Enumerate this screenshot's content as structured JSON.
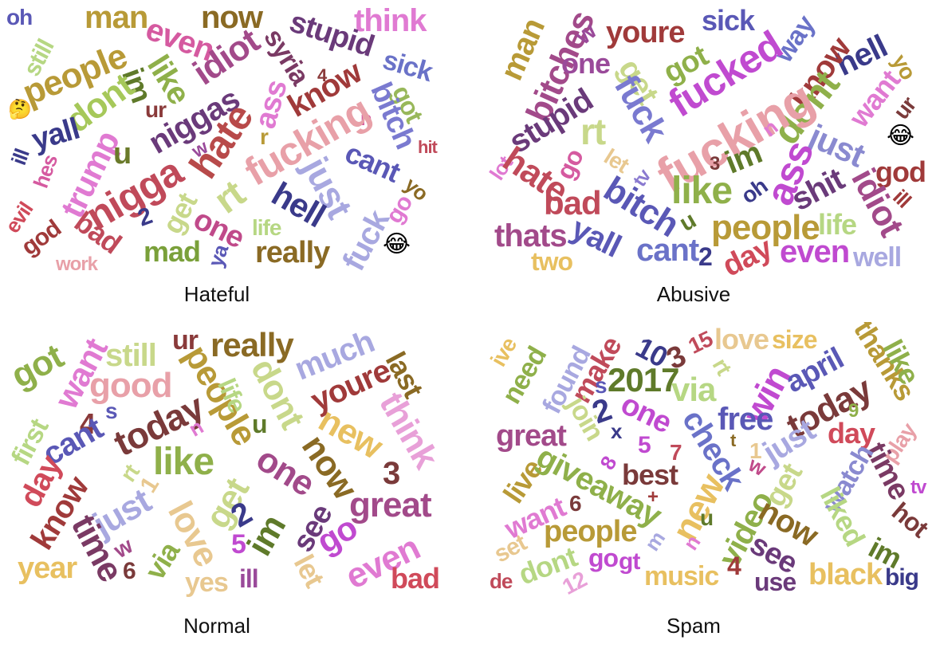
{
  "panels": [
    {
      "caption": "Hateful",
      "words": [
        {
          "text": "oh",
          "color": "#5a58b6"
        },
        {
          "text": "man",
          "color": "#b89a37"
        },
        {
          "text": "now",
          "color": "#8a6a24"
        },
        {
          "text": "think",
          "color": "#e07ad2"
        },
        {
          "text": "still",
          "color": "#b6d783"
        },
        {
          "text": "people",
          "color": "#b89a37"
        },
        {
          "text": "even",
          "color": "#d55aa0"
        },
        {
          "text": "stupid",
          "color": "#6a3a7a"
        },
        {
          "text": "sick",
          "color": "#6a72c8"
        },
        {
          "text": "idiot",
          "color": "#a24a8a"
        },
        {
          "text": "syria",
          "color": "#7a3a64"
        },
        {
          "text": "im",
          "color": "#5f7a2a"
        },
        {
          "text": "like",
          "color": "#8fb04a"
        },
        {
          "text": "ass",
          "color": "#e07ad2"
        },
        {
          "text": "know",
          "color": "#a03a3a"
        },
        {
          "text": "got",
          "color": "#98b85a"
        },
        {
          "text": "dont",
          "color": "#a6c85a"
        },
        {
          "text": "ur",
          "color": "#8a3a3a"
        },
        {
          "text": "niggas",
          "color": "#6a3a7a"
        },
        {
          "text": "bitch",
          "color": "#7a7ad0"
        },
        {
          "text": "yall",
          "color": "#3a3a8a"
        },
        {
          "text": "r",
          "color": "#b89a37"
        },
        {
          "text": "n",
          "color": "#d55aa0"
        },
        {
          "text": "hit",
          "color": "#c04a5a"
        },
        {
          "text": "trump",
          "color": "#e07ad2"
        },
        {
          "text": "u",
          "color": "#6a7a2a"
        },
        {
          "text": "w",
          "color": "#9a4a9a"
        },
        {
          "text": "hate",
          "color": "#b84a4a"
        },
        {
          "text": "fucking",
          "color": "#e8a0a8"
        },
        {
          "text": "cant",
          "color": "#5a58b6"
        },
        {
          "text": "ill",
          "color": "#3a3a8a"
        },
        {
          "text": "evil",
          "color": "#d04a5a"
        },
        {
          "text": "hes",
          "color": "#d55aa0"
        },
        {
          "text": "nigga",
          "color": "#c04a5a"
        },
        {
          "text": "rt",
          "color": "#c8d88a"
        },
        {
          "text": "just",
          "color": "#a8a8e0"
        },
        {
          "text": "yo",
          "color": "#8a6a24"
        },
        {
          "text": "get",
          "color": "#c8d88a"
        },
        {
          "text": "2",
          "color": "#3a3a8a"
        },
        {
          "text": "hell",
          "color": "#3a3a8a"
        },
        {
          "text": "go",
          "color": "#e07ad2"
        },
        {
          "text": "god",
          "color": "#a03a3a"
        },
        {
          "text": "bad",
          "color": "#c04a5a"
        },
        {
          "text": "one",
          "color": "#c04a8a"
        },
        {
          "text": "life",
          "color": "#b6d783"
        },
        {
          "text": "mad",
          "color": "#7aa03a"
        },
        {
          "text": "ya",
          "color": "#5a58b6"
        },
        {
          "text": "really",
          "color": "#8a6a24"
        },
        {
          "text": "fuck",
          "color": "#a8a8e0"
        },
        {
          "text": "work",
          "color": "#e8a0a8"
        },
        {
          "text": "4",
          "color": "#8a3a3a"
        }
      ]
    },
    {
      "caption": "Abusive",
      "words": [
        {
          "text": "man",
          "color": "#b89a37"
        },
        {
          "text": "bitches",
          "color": "#a24a8a"
        },
        {
          "text": "w",
          "color": "#9a4a9a"
        },
        {
          "text": "youre",
          "color": "#a03a3a"
        },
        {
          "text": "sick",
          "color": "#5a58b6"
        },
        {
          "text": "way",
          "color": "#6a72c8"
        },
        {
          "text": "one",
          "color": "#9a4a9a"
        },
        {
          "text": "get",
          "color": "#c8d88a"
        },
        {
          "text": "got",
          "color": "#8fb04a"
        },
        {
          "text": "hell",
          "color": "#3a3a8a"
        },
        {
          "text": "yo",
          "color": "#b89a37"
        },
        {
          "text": "know",
          "color": "#a03a3a"
        },
        {
          "text": "fucked",
          "color": "#c04ad0"
        },
        {
          "text": "stupid",
          "color": "#6a3a7a"
        },
        {
          "text": "fuck",
          "color": "#7a7ad0"
        },
        {
          "text": "rt",
          "color": "#c8d88a"
        },
        {
          "text": "dont",
          "color": "#8fb04a"
        },
        {
          "text": "want",
          "color": "#e07ad2"
        },
        {
          "text": "ur",
          "color": "#7a3a3a"
        },
        {
          "text": "fucking",
          "color": "#e8a0a8"
        },
        {
          "text": "lot",
          "color": "#e07ad2"
        },
        {
          "text": "hate",
          "color": "#c04a5a"
        },
        {
          "text": "go",
          "color": "#d55aa0"
        },
        {
          "text": "let",
          "color": "#e8c890"
        },
        {
          "text": "tv",
          "color": "#8a7ad0"
        },
        {
          "text": "n",
          "color": "#e07ad2"
        },
        {
          "text": "just",
          "color": "#8a8ad0"
        },
        {
          "text": "ass",
          "color": "#c04ad0"
        },
        {
          "text": "god",
          "color": "#a03a3a"
        },
        {
          "text": "im",
          "color": "#5f7a2a"
        },
        {
          "text": "3",
          "color": "#7a3a3a"
        },
        {
          "text": "idiot",
          "color": "#a24a8a"
        },
        {
          "text": "ill",
          "color": "#a03a3a"
        },
        {
          "text": "bad",
          "color": "#c04a5a"
        },
        {
          "text": "bitch",
          "color": "#5a58b6"
        },
        {
          "text": "like",
          "color": "#8fb04a"
        },
        {
          "text": "oh",
          "color": "#3a3a8a"
        },
        {
          "text": "shit",
          "color": "#6a3a7a"
        },
        {
          "text": "u",
          "color": "#5f7a2a"
        },
        {
          "text": "thats",
          "color": "#a24a8a"
        },
        {
          "text": "yall",
          "color": "#5a58b6"
        },
        {
          "text": "people",
          "color": "#b89a37"
        },
        {
          "text": "life",
          "color": "#b6d783"
        },
        {
          "text": "two",
          "color": "#e8c060"
        },
        {
          "text": "cant",
          "color": "#6a72c8"
        },
        {
          "text": "2",
          "color": "#3a3a8a"
        },
        {
          "text": "day",
          "color": "#d04a5a"
        },
        {
          "text": "even",
          "color": "#c04ad0"
        },
        {
          "text": "well",
          "color": "#a8a8e0"
        }
      ]
    },
    {
      "caption": "Normal",
      "words": [
        {
          "text": "got",
          "color": "#8fb04a"
        },
        {
          "text": "want",
          "color": "#e07ad2"
        },
        {
          "text": "still",
          "color": "#c8d88a"
        },
        {
          "text": "ur",
          "color": "#8a3a3a"
        },
        {
          "text": "really",
          "color": "#8a6a24"
        },
        {
          "text": "much",
          "color": "#a8a8e0"
        },
        {
          "text": "last",
          "color": "#8a6a24"
        },
        {
          "text": "good",
          "color": "#e8a0a8"
        },
        {
          "text": "people",
          "color": "#b89a37"
        },
        {
          "text": "life",
          "color": "#b6d783"
        },
        {
          "text": "dont",
          "color": "#c8d88a"
        },
        {
          "text": "youre",
          "color": "#a03a3a"
        },
        {
          "text": "first",
          "color": "#b6d783"
        },
        {
          "text": "4",
          "color": "#8a3a3a"
        },
        {
          "text": "s",
          "color": "#5a58b6"
        },
        {
          "text": "today",
          "color": "#7a3a3a"
        },
        {
          "text": "u",
          "color": "#5f7a2a"
        },
        {
          "text": "new",
          "color": "#e8c060"
        },
        {
          "text": "think",
          "color": "#e8a0d8"
        },
        {
          "text": "cant",
          "color": "#5a58b6"
        },
        {
          "text": "n",
          "color": "#e07ad2"
        },
        {
          "text": "day",
          "color": "#d04a5a"
        },
        {
          "text": "like",
          "color": "#8fb04a"
        },
        {
          "text": "now",
          "color": "#8a6a24"
        },
        {
          "text": "one",
          "color": "#a24a8a"
        },
        {
          "text": "3",
          "color": "#7a3a3a"
        },
        {
          "text": "rt",
          "color": "#c8d88a"
        },
        {
          "text": "1",
          "color": "#e8c890"
        },
        {
          "text": "get",
          "color": "#c8d88a"
        },
        {
          "text": "great",
          "color": "#a24a8a"
        },
        {
          "text": "know",
          "color": "#a03a3a"
        },
        {
          "text": "just",
          "color": "#a8a8e0"
        },
        {
          "text": "love",
          "color": "#e8c890"
        },
        {
          "text": "2",
          "color": "#3a3a8a"
        },
        {
          "text": "im",
          "color": "#5f7a2a"
        },
        {
          "text": "see",
          "color": "#6a3a7a"
        },
        {
          "text": "go",
          "color": "#c04ad0"
        },
        {
          "text": "time",
          "color": "#7a3a64"
        },
        {
          "text": "w",
          "color": "#a24a8a"
        },
        {
          "text": "via",
          "color": "#8fb04a"
        },
        {
          "text": "5",
          "color": "#c04ad0"
        },
        {
          "text": "let",
          "color": "#e8c890"
        },
        {
          "text": "even",
          "color": "#e07ad2"
        },
        {
          "text": "year",
          "color": "#e8c060"
        },
        {
          "text": "6",
          "color": "#7a3a3a"
        },
        {
          "text": "yes",
          "color": "#e8c890"
        },
        {
          "text": "ill",
          "color": "#9a4a9a"
        },
        {
          "text": "bad",
          "color": "#d04a5a"
        }
      ]
    },
    {
      "caption": "Spam",
      "words": [
        {
          "text": "ive",
          "color": "#e8c060"
        },
        {
          "text": "need",
          "color": "#8fb04a"
        },
        {
          "text": "found",
          "color": "#a8a8e0"
        },
        {
          "text": "make",
          "color": "#c04a5a"
        },
        {
          "text": "10",
          "color": "#3a3a8a"
        },
        {
          "text": "3",
          "color": "#7a3a3a"
        },
        {
          "text": "15",
          "color": "#c04a5a"
        },
        {
          "text": "love",
          "color": "#e8c890"
        },
        {
          "text": "size",
          "color": "#e8c060"
        },
        {
          "text": "thanks",
          "color": "#b89a37"
        },
        {
          "text": "like",
          "color": "#8fb04a"
        },
        {
          "text": "2017",
          "color": "#5f7a2a"
        },
        {
          "text": "via",
          "color": "#b6d783"
        },
        {
          "text": "rt",
          "color": "#c8d88a"
        },
        {
          "text": "win",
          "color": "#c04ad0"
        },
        {
          "text": "april",
          "color": "#5a58b6"
        },
        {
          "text": "s",
          "color": "#5a58b6"
        },
        {
          "text": "join",
          "color": "#c8d88a"
        },
        {
          "text": "2",
          "color": "#3a3a8a"
        },
        {
          "text": "x",
          "color": "#3a3a8a"
        },
        {
          "text": "one",
          "color": "#c04ad0"
        },
        {
          "text": "free",
          "color": "#5a58b6"
        },
        {
          "text": "today",
          "color": "#7a3a3a"
        },
        {
          "text": "9",
          "color": "#8fb04a"
        },
        {
          "text": "great",
          "color": "#a24a8a"
        },
        {
          "text": "5",
          "color": "#c04ad0"
        },
        {
          "text": "check",
          "color": "#6a72c8"
        },
        {
          "text": "just",
          "color": "#a8a8e0"
        },
        {
          "text": "day",
          "color": "#d04a5a"
        },
        {
          "text": "play",
          "color": "#e8a0a8"
        },
        {
          "text": "8",
          "color": "#c04ad0"
        },
        {
          "text": "7",
          "color": "#c04a5a"
        },
        {
          "text": "t",
          "color": "#8a6a24"
        },
        {
          "text": "1",
          "color": "#e8c890"
        },
        {
          "text": "time",
          "color": "#7a3a64"
        },
        {
          "text": "live",
          "color": "#b89a37"
        },
        {
          "text": "giveaway",
          "color": "#8fb04a"
        },
        {
          "text": "best",
          "color": "#7a3a3a"
        },
        {
          "text": "w",
          "color": "#c04a8a"
        },
        {
          "text": "get",
          "color": "#c8d88a"
        },
        {
          "text": "watch",
          "color": "#8a8ad0"
        },
        {
          "text": "tv",
          "color": "#c04ad0"
        },
        {
          "text": "want",
          "color": "#e07ad2"
        },
        {
          "text": "+",
          "color": "#a03a3a"
        },
        {
          "text": "new",
          "color": "#e8c060"
        },
        {
          "text": "liked",
          "color": "#b6d783"
        },
        {
          "text": "6",
          "color": "#7a3a3a"
        },
        {
          "text": "video",
          "color": "#8fb04a"
        },
        {
          "text": "hot",
          "color": "#7a3a3a"
        },
        {
          "text": "people",
          "color": "#b89a37"
        },
        {
          "text": "u",
          "color": "#5f7a2a"
        },
        {
          "text": "now",
          "color": "#8a6a24"
        },
        {
          "text": "im",
          "color": "#5f7a2a"
        },
        {
          "text": "m",
          "color": "#a8a8e0"
        },
        {
          "text": "n",
          "color": "#e07ad2"
        },
        {
          "text": "see",
          "color": "#6a3a7a"
        },
        {
          "text": "set",
          "color": "#e8c890"
        },
        {
          "text": "dont",
          "color": "#b6d783"
        },
        {
          "text": "go",
          "color": "#c04ad0"
        },
        {
          "text": "gt",
          "color": "#c04ad0"
        },
        {
          "text": "music",
          "color": "#e8c060"
        },
        {
          "text": "4",
          "color": "#a03a3a"
        },
        {
          "text": "use",
          "color": "#6a3a7a"
        },
        {
          "text": "black",
          "color": "#e8c060"
        },
        {
          "text": "big",
          "color": "#3a3a8a"
        },
        {
          "text": "de",
          "color": "#c04a5a"
        },
        {
          "text": "12",
          "color": "#e8a0d8"
        }
      ]
    }
  ]
}
